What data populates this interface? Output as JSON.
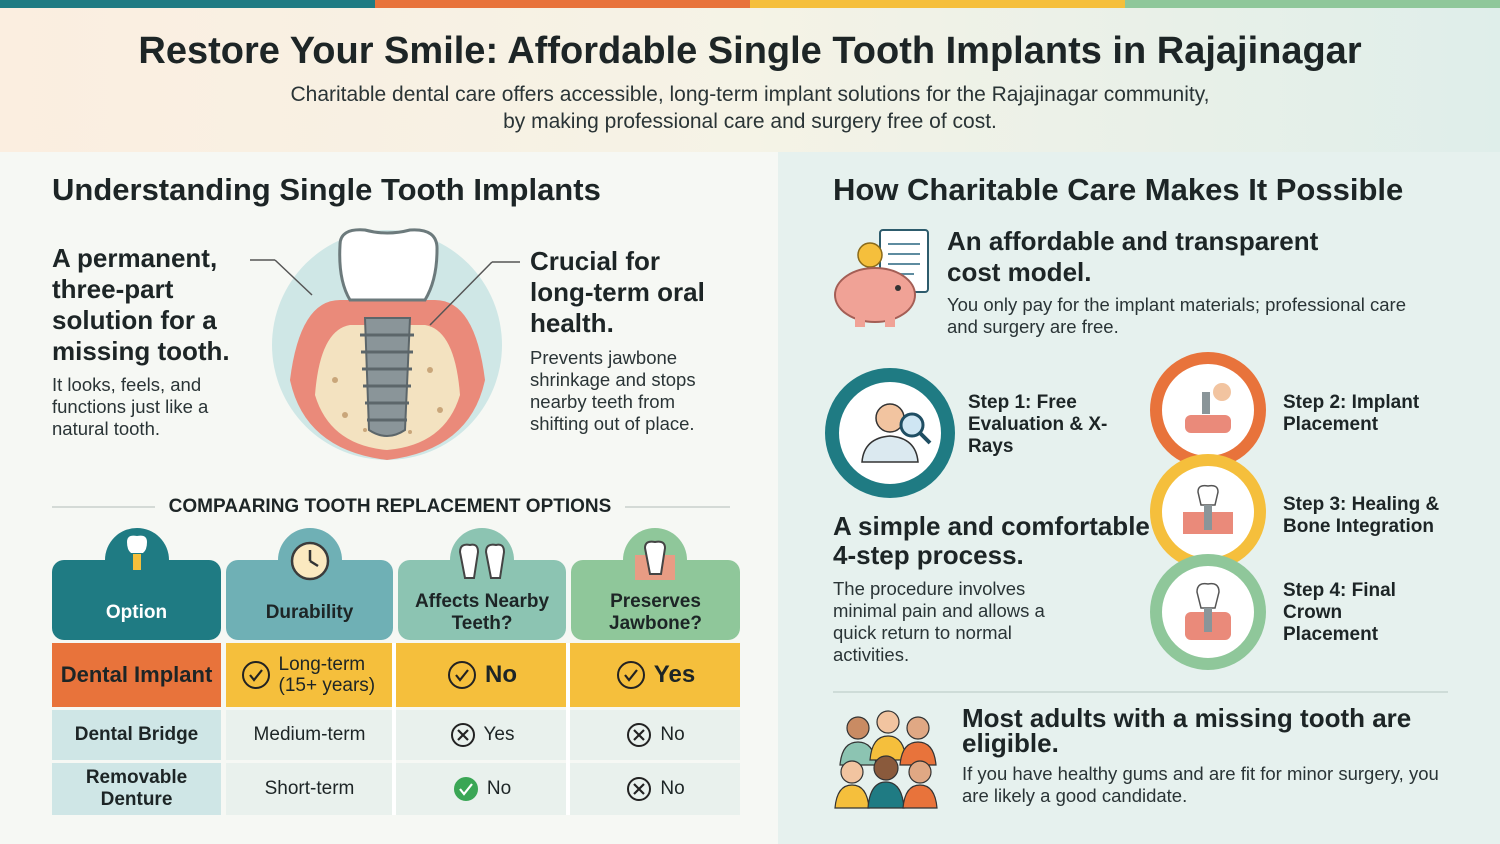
{
  "header": {
    "title": "Restore Your Smile: Affordable Single Tooth Implants in Rajajinagar",
    "subtitle": [
      "Charitable dental care offers accessible, long-term implant solutions for the Rajajinagar community,",
      "by making professional care and surgery free of cost."
    ]
  },
  "left": {
    "heading": "Understanding Single Tooth Implants",
    "intro": {
      "title": "A permanent, three-part solution for a missing tooth.",
      "text": "It looks, feels, and functions just like a natural tooth."
    },
    "benefit": {
      "title": "Crucial for long-term oral health.",
      "text": "Prevents jawbone shrinkage and stops nearby teeth from shifting out of place."
    }
  },
  "comparison": {
    "title": "COMPAARING TOOTH REPLACEMENT OPTIONS",
    "columns": [
      "Option",
      "Durability",
      "Affects Nearby Teeth?",
      "Preserves Jawbone?"
    ],
    "rows": [
      [
        "Dental Implant",
        "Long-term (15+ years)",
        "No",
        "Yes"
      ],
      [
        "Dental Bridge",
        "Medium-term",
        "Yes",
        "No"
      ],
      [
        "Removable Denture",
        "Short-term",
        "No",
        "No"
      ]
    ]
  },
  "right": {
    "heading": "How Charitable Care Makes It Possible",
    "cost": {
      "title": "An affordable and transparent cost model.",
      "text": "You only pay for the implant materials; professional care and surgery are free."
    },
    "process": {
      "title": "A simple and comfortable 4-step process.",
      "text": "The procedure involves minimal pain and allows a quick return to normal activities."
    },
    "steps": [
      "Step 1: Free Evaluation & X-Rays",
      "Step 2: Implant Placement",
      "Step 3: Healing & Bone Integration",
      "Step 4: Final Crown Placement"
    ],
    "eligibility": {
      "title": "Most adults with a missing tooth are eligible.",
      "text": "If you have healthy gums and are fit for minor surgery, you are likely a good candidate."
    }
  }
}
